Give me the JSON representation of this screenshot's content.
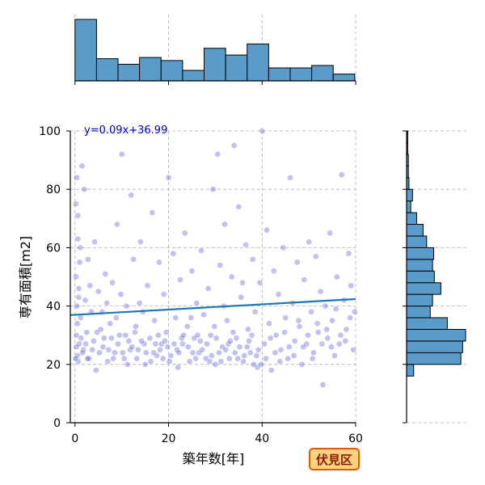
{
  "colors": {
    "bar_fill": "#5b9bc9",
    "bar_stroke": "#000000",
    "point_fill": "#2323c8",
    "regression_line": "#1f77b4",
    "equation_text": "#0000cc",
    "grid": "#b0b0b0",
    "badge_fill": "#ffd27f",
    "badge_stroke": "#e05a00",
    "badge_text": "#8b1a00"
  },
  "badge": {
    "label": "伏見区"
  },
  "chart_data": {
    "type": "scatter",
    "xlabel": "築年数[年]",
    "ylabel": "専有面積[m2]",
    "xlim": [
      -1,
      60
    ],
    "ylim": [
      0,
      100
    ],
    "xticks": [
      0,
      20,
      40,
      60
    ],
    "yticks": [
      0,
      20,
      40,
      60,
      80,
      100
    ],
    "grid": true,
    "regression": {
      "slope": 0.09,
      "intercept": 36.99,
      "label": "y=0.09x+36.99"
    },
    "x_histogram": {
      "bins": [
        [
          0,
          4.6
        ],
        [
          4.6,
          9.2
        ],
        [
          9.2,
          13.8
        ],
        [
          13.8,
          18.4
        ],
        [
          18.4,
          23.0
        ],
        [
          23.0,
          27.6
        ],
        [
          27.6,
          32.2
        ],
        [
          32.2,
          36.8
        ],
        [
          36.8,
          41.4
        ],
        [
          41.4,
          46.0
        ],
        [
          46.0,
          50.6
        ],
        [
          50.6,
          55.2
        ],
        [
          55.2,
          59.8
        ]
      ],
      "counts": [
        100,
        36,
        27,
        38,
        33,
        17,
        53,
        42,
        60,
        21,
        21,
        25,
        11
      ]
    },
    "y_histogram": {
      "bins": [
        [
          16,
          20
        ],
        [
          20,
          24
        ],
        [
          24,
          28
        ],
        [
          28,
          32
        ],
        [
          32,
          36
        ],
        [
          36,
          40
        ],
        [
          40,
          44
        ],
        [
          44,
          48
        ],
        [
          48,
          52
        ],
        [
          52,
          56
        ],
        [
          56,
          60
        ],
        [
          60,
          64
        ],
        [
          64,
          68
        ],
        [
          68,
          72
        ],
        [
          72,
          76
        ],
        [
          76,
          80
        ],
        [
          80,
          84
        ],
        [
          84,
          88
        ],
        [
          88,
          92
        ],
        [
          92,
          96
        ],
        [
          96,
          100
        ]
      ],
      "counts": [
        12,
        92,
        95,
        100,
        69,
        40,
        44,
        58,
        47,
        44,
        46,
        34,
        28,
        17,
        7,
        10,
        4,
        3,
        3,
        2,
        2
      ]
    },
    "points": [
      [
        0.2,
        75
      ],
      [
        0.5,
        23
      ],
      [
        0.8,
        43
      ],
      [
        0.3,
        30
      ],
      [
        0.6,
        63
      ],
      [
        0.4,
        84
      ],
      [
        1.0,
        55
      ],
      [
        0.2,
        50
      ],
      [
        1.5,
        88
      ],
      [
        0.7,
        21
      ],
      [
        1.2,
        36
      ],
      [
        0.9,
        27
      ],
      [
        0.4,
        40
      ],
      [
        0.6,
        71
      ],
      [
        1.1,
        60
      ],
      [
        2.0,
        80
      ],
      [
        1.8,
        25
      ],
      [
        2.5,
        31
      ],
      [
        2.2,
        42
      ],
      [
        3.0,
        22
      ],
      [
        3.5,
        38
      ],
      [
        4.0,
        28
      ],
      [
        4.5,
        18
      ],
      [
        5.0,
        45
      ],
      [
        5.5,
        32
      ],
      [
        6.0,
        26
      ],
      [
        6.5,
        51
      ],
      [
        7.0,
        21
      ],
      [
        7.5,
        34
      ],
      [
        8.0,
        48
      ],
      [
        8.5,
        24
      ],
      [
        9.0,
        68
      ],
      [
        9.5,
        30
      ],
      [
        10.0,
        92
      ],
      [
        10.5,
        22
      ],
      [
        11.0,
        40
      ],
      [
        11.5,
        28
      ],
      [
        12.0,
        78
      ],
      [
        12.5,
        56
      ],
      [
        13.0,
        33
      ],
      [
        13.5,
        25
      ],
      [
        14.0,
        62
      ],
      [
        14.5,
        38
      ],
      [
        15.0,
        20
      ],
      [
        15.5,
        47
      ],
      [
        16.0,
        29
      ],
      [
        16.5,
        72
      ],
      [
        17.0,
        35
      ],
      [
        17.5,
        23
      ],
      [
        18.0,
        55
      ],
      [
        18.5,
        27
      ],
      [
        19.0,
        44
      ],
      [
        19.5,
        31
      ],
      [
        20.0,
        84
      ],
      [
        20.5,
        23
      ],
      [
        21.0,
        58
      ],
      [
        21.5,
        36
      ],
      [
        22.0,
        19
      ],
      [
        22.5,
        49
      ],
      [
        23.0,
        27
      ],
      [
        23.5,
        65
      ],
      [
        24.0,
        33
      ],
      [
        24.5,
        21
      ],
      [
        25.0,
        52
      ],
      [
        25.5,
        29
      ],
      [
        26.0,
        41
      ],
      [
        26.5,
        24
      ],
      [
        27.0,
        59
      ],
      [
        27.5,
        37
      ],
      [
        28.0,
        22
      ],
      [
        28.5,
        46
      ],
      [
        29.0,
        30
      ],
      [
        29.5,
        80
      ],
      [
        30.0,
        20
      ],
      [
        30.5,
        92
      ],
      [
        31.0,
        54
      ],
      [
        31.5,
        26
      ],
      [
        32.0,
        68
      ],
      [
        32.5,
        35
      ],
      [
        33.0,
        22
      ],
      [
        33.5,
        50
      ],
      [
        34.0,
        95
      ],
      [
        34.5,
        29
      ],
      [
        35.0,
        74
      ],
      [
        35.5,
        43
      ],
      [
        36.0,
        21
      ],
      [
        36.5,
        61
      ],
      [
        37.0,
        32
      ],
      [
        37.5,
        24
      ],
      [
        38.0,
        56
      ],
      [
        38.5,
        38
      ],
      [
        39.0,
        19
      ],
      [
        39.5,
        48
      ],
      [
        40.0,
        100
      ],
      [
        40.5,
        27
      ],
      [
        41.0,
        66
      ],
      [
        41.5,
        34
      ],
      [
        42.0,
        18
      ],
      [
        42.5,
        52
      ],
      [
        43.0,
        30
      ],
      [
        43.5,
        44
      ],
      [
        44.0,
        25
      ],
      [
        44.5,
        60
      ],
      [
        45.0,
        36
      ],
      [
        45.5,
        22
      ],
      [
        46.0,
        84
      ],
      [
        46.5,
        41
      ],
      [
        47.0,
        28
      ],
      [
        47.5,
        55
      ],
      [
        48.0,
        33
      ],
      [
        48.5,
        20
      ],
      [
        49.0,
        49
      ],
      [
        49.5,
        27
      ],
      [
        50.0,
        62
      ],
      [
        50.5,
        38
      ],
      [
        51.0,
        24
      ],
      [
        51.5,
        57
      ],
      [
        52.0,
        31
      ],
      [
        52.5,
        45
      ],
      [
        53.0,
        13
      ],
      [
        53.5,
        40
      ],
      [
        54.0,
        29
      ],
      [
        54.5,
        65
      ],
      [
        55.0,
        35
      ],
      [
        55.5,
        23
      ],
      [
        56.0,
        50
      ],
      [
        56.5,
        27
      ],
      [
        57.0,
        85
      ],
      [
        57.5,
        42
      ],
      [
        58.0,
        32
      ],
      [
        58.5,
        58
      ],
      [
        59.0,
        47
      ],
      [
        59.5,
        25
      ],
      [
        59.8,
        38
      ],
      [
        2.8,
        56
      ],
      [
        3.2,
        47
      ],
      [
        4.2,
        62
      ],
      [
        5.8,
        38
      ],
      [
        6.8,
        41
      ],
      [
        7.8,
        29
      ],
      [
        8.8,
        36
      ],
      [
        9.8,
        44
      ],
      [
        11.8,
        25
      ],
      [
        12.8,
        31
      ],
      [
        13.8,
        41
      ],
      [
        14.8,
        27
      ],
      [
        16.8,
        24
      ],
      [
        17.8,
        30
      ],
      [
        18.8,
        22
      ],
      [
        19.8,
        26
      ],
      [
        21.8,
        25
      ],
      [
        22.8,
        29
      ],
      [
        24.8,
        36
      ],
      [
        25.8,
        22
      ],
      [
        26.8,
        28
      ],
      [
        28.8,
        21
      ],
      [
        29.8,
        33
      ],
      [
        30.8,
        24
      ],
      [
        31.8,
        40
      ],
      [
        32.8,
        27
      ],
      [
        33.8,
        31
      ],
      [
        34.8,
        22
      ],
      [
        35.8,
        48
      ],
      [
        36.8,
        26
      ],
      [
        37.8,
        30
      ],
      [
        38.8,
        23
      ],
      [
        39.8,
        20
      ],
      [
        40.8,
        22
      ],
      [
        41.8,
        29
      ],
      [
        42.8,
        24
      ],
      [
        43.8,
        21
      ],
      [
        44.8,
        31
      ],
      [
        45.8,
        26
      ],
      [
        46.8,
        23
      ],
      [
        47.8,
        35
      ],
      [
        48.8,
        26
      ],
      [
        49.8,
        30
      ],
      [
        50.8,
        22
      ],
      [
        51.8,
        34
      ],
      [
        52.8,
        27
      ],
      [
        53.8,
        32
      ],
      [
        54.8,
        26
      ],
      [
        55.8,
        39
      ],
      [
        56.8,
        30
      ],
      [
        57.8,
        28
      ],
      [
        58.8,
        36
      ],
      [
        0.1,
        22
      ],
      [
        0.3,
        26
      ],
      [
        0.5,
        34
      ],
      [
        0.8,
        46
      ],
      [
        1.3,
        29
      ],
      [
        1.6,
        24
      ],
      [
        2.3,
        27
      ],
      [
        2.7,
        22
      ],
      [
        3.7,
        25
      ],
      [
        4.7,
        31
      ],
      [
        5.2,
        24
      ],
      [
        6.2,
        29
      ],
      [
        7.2,
        25
      ],
      [
        8.2,
        22
      ],
      [
        9.2,
        27
      ],
      [
        10.2,
        24
      ],
      [
        10.8,
        30
      ],
      [
        11.2,
        20
      ],
      [
        12.2,
        26
      ],
      [
        13.2,
        22
      ],
      [
        14.2,
        28
      ],
      [
        15.2,
        24
      ],
      [
        16.2,
        21
      ],
      [
        17.2,
        27
      ],
      [
        18.2,
        25
      ],
      [
        19.2,
        28
      ],
      [
        20.2,
        21
      ],
      [
        21.2,
        27
      ],
      [
        22.2,
        24
      ],
      [
        23.2,
        30
      ],
      [
        24.2,
        26
      ],
      [
        25.2,
        24
      ],
      [
        26.2,
        30
      ],
      [
        27.2,
        25
      ],
      [
        28.2,
        27
      ],
      [
        29.2,
        23
      ],
      [
        30.2,
        29
      ],
      [
        31.2,
        21
      ],
      [
        32.2,
        25
      ],
      [
        33.2,
        28
      ],
      [
        34.2,
        24
      ],
      [
        35.2,
        26
      ],
      [
        36.2,
        23
      ],
      [
        37.2,
        28
      ],
      [
        38.2,
        20
      ],
      [
        39.2,
        25
      ]
    ]
  }
}
